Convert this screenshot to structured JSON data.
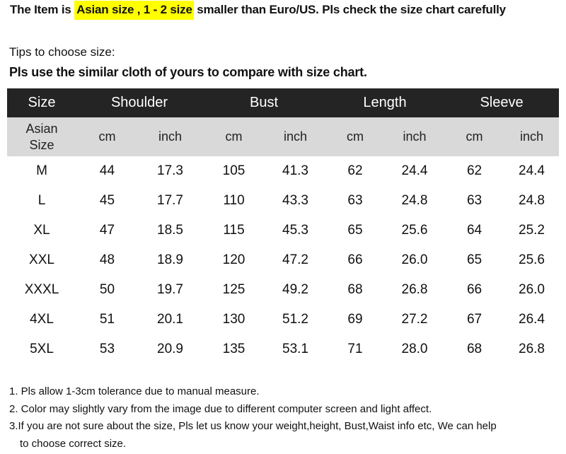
{
  "headline": {
    "prefix": "The Item is ",
    "highlight": "Asian size , 1 - 2 size",
    "suffix": " smaller than Euro/US. Pls check the size chart carefully",
    "highlight_color": "#ffff00"
  },
  "tips_label": "Tips to choose size:",
  "tips_bold": "Pls use the similar cloth of yours to compare with size chart.",
  "table": {
    "header": [
      "Size",
      "Shoulder",
      "Bust",
      "Length",
      "Sleeve"
    ],
    "subheader": {
      "size_line1": "Asian",
      "size_line2": "Size",
      "units": [
        "cm",
        "inch",
        "cm",
        "inch",
        "cm",
        "inch",
        "cm",
        "inch"
      ]
    },
    "rows": [
      [
        "M",
        "44",
        "17.3",
        "105",
        "41.3",
        "62",
        "24.4",
        "62",
        "24.4"
      ],
      [
        "L",
        "45",
        "17.7",
        "110",
        "43.3",
        "63",
        "24.8",
        "63",
        "24.8"
      ],
      [
        "XL",
        "47",
        "18.5",
        "115",
        "45.3",
        "65",
        "25.6",
        "64",
        "25.2"
      ],
      [
        "XXL",
        "48",
        "18.9",
        "120",
        "47.2",
        "66",
        "26.0",
        "65",
        "25.6"
      ],
      [
        "XXXL",
        "50",
        "19.7",
        "125",
        "49.2",
        "68",
        "26.8",
        "66",
        "26.0"
      ],
      [
        "4XL",
        "51",
        "20.1",
        "130",
        "51.2",
        "69",
        "27.2",
        "67",
        "26.4"
      ],
      [
        "5XL",
        "53",
        "20.9",
        "135",
        "53.1",
        "71",
        "28.0",
        "68",
        "26.8"
      ]
    ],
    "header_bg": "#242424",
    "subheader_bg": "#d9d9d9"
  },
  "notes": [
    "1. Pls allow 1-3cm tolerance due to manual measure.",
    "2. Color may slightly vary from the image due to different computer screen and light affect.",
    "3.If you are not sure about the size, Pls let us know your weight,height, Bust,Waist info etc, We can help",
    "to choose correct size."
  ]
}
